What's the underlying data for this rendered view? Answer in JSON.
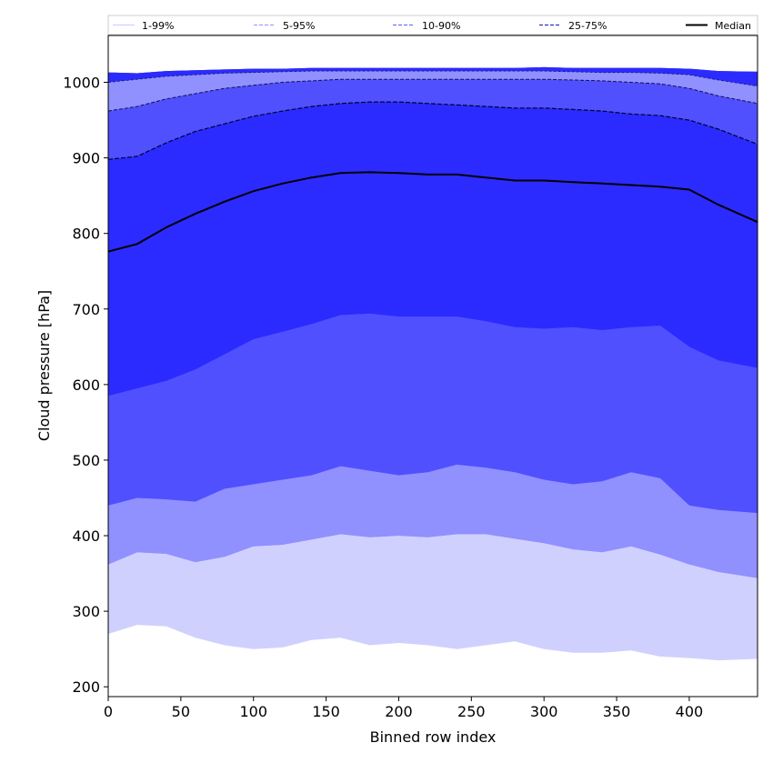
{
  "chart_data": {
    "type": "area",
    "title": "",
    "xlabel": "Binned row index",
    "ylabel": "Cloud pressure [hPa]",
    "xlim": [
      0,
      447
    ],
    "ylim": [
      187,
      1062
    ],
    "x_ticks": [
      0,
      50,
      100,
      150,
      200,
      250,
      300,
      350,
      400
    ],
    "y_ticks": [
      200,
      300,
      400,
      500,
      600,
      700,
      800,
      900,
      1000
    ],
    "grid": false,
    "legend_position": "top",
    "x": [
      0,
      20,
      40,
      60,
      80,
      100,
      120,
      140,
      160,
      180,
      200,
      220,
      240,
      260,
      280,
      300,
      320,
      340,
      360,
      380,
      400,
      420,
      447
    ],
    "bands": [
      {
        "name": "1-99%",
        "color": "#d0d0ff",
        "lower": [
          270,
          282,
          280,
          265,
          255,
          250,
          252,
          262,
          265,
          255,
          258,
          255,
          250,
          255,
          260,
          250,
          245,
          245,
          248,
          240,
          238,
          235,
          237
        ],
        "upper": [
          1013,
          1012,
          1015,
          1016,
          1017,
          1018,
          1018,
          1019,
          1019,
          1019,
          1019,
          1019,
          1019,
          1019,
          1019,
          1020,
          1019,
          1019,
          1019,
          1019,
          1018,
          1015,
          1014
        ]
      },
      {
        "name": "5-95%",
        "color": "#9090ff",
        "lower": [
          362,
          378,
          376,
          365,
          372,
          386,
          388,
          395,
          402,
          398,
          400,
          398,
          402,
          402,
          396,
          390,
          382,
          378,
          386,
          375,
          362,
          352,
          344
        ]
      },
      {
        "name": "10-90%",
        "color": "#5050ff",
        "lower": [
          440,
          450,
          448,
          445,
          462,
          468,
          474,
          480,
          492,
          486,
          480,
          484,
          494,
          490,
          484,
          474,
          468,
          472,
          484,
          476,
          440,
          434,
          430
        ]
      },
      {
        "name": "25-75%",
        "color": "#2b2bff",
        "lower": [
          585,
          595,
          605,
          620,
          640,
          660,
          670,
          680,
          692,
          694,
          690,
          690,
          690,
          684,
          676,
          674,
          676,
          672,
          676,
          678,
          650,
          632,
          622
        ]
      }
    ],
    "lines": [
      {
        "name": "5-95%",
        "values": [
          1000,
          1004,
          1008,
          1010,
          1012,
          1013,
          1014,
          1015,
          1015,
          1015,
          1015,
          1015,
          1015,
          1015,
          1015,
          1015,
          1014,
          1013,
          1013,
          1012,
          1010,
          1003,
          995
        ]
      },
      {
        "name": "10-90%",
        "values": [
          962,
          968,
          978,
          985,
          992,
          996,
          1000,
          1002,
          1004,
          1004,
          1004,
          1004,
          1004,
          1004,
          1004,
          1004,
          1003,
          1002,
          1000,
          998,
          992,
          982,
          972
        ]
      },
      {
        "name": "25-75%",
        "values": [
          898,
          902,
          920,
          935,
          945,
          955,
          962,
          968,
          972,
          974,
          974,
          972,
          970,
          968,
          966,
          966,
          964,
          962,
          958,
          956,
          950,
          938,
          918
        ]
      },
      {
        "name": "Median",
        "values": [
          776,
          786,
          808,
          826,
          842,
          856,
          866,
          874,
          880,
          881,
          880,
          878,
          878,
          874,
          870,
          870,
          868,
          866,
          864,
          862,
          858,
          838,
          815
        ]
      }
    ],
    "legend": [
      {
        "label": "1-99%",
        "color": "#d0d0ff",
        "style": "solid"
      },
      {
        "label": "5-95%",
        "color": "#a0a0ff",
        "style": "dashed"
      },
      {
        "label": "10-90%",
        "color": "#7070ff",
        "style": "dashed"
      },
      {
        "label": "25-75%",
        "color": "#3030cc",
        "style": "dashed"
      },
      {
        "label": "Median",
        "color": "#000000",
        "style": "solid"
      }
    ]
  }
}
